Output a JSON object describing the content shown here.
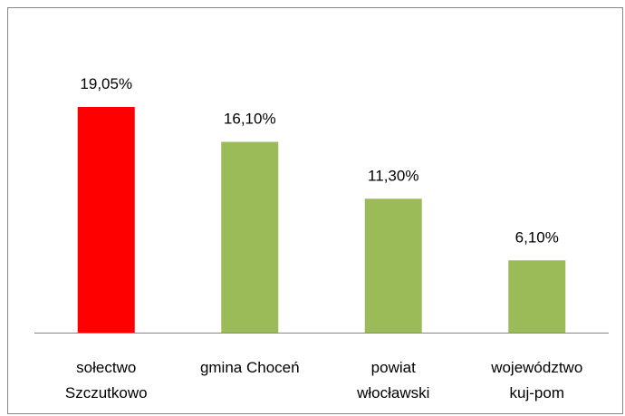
{
  "chart_data": {
    "type": "bar",
    "categories": [
      "sołectwo\nSzczutkowo",
      "gmina Choceń",
      "powiat\nwłocławski",
      "województwo\nkuj-pom"
    ],
    "values": [
      19.05,
      16.1,
      11.3,
      6.1
    ],
    "value_labels": [
      "19,05%",
      "16,10%",
      "11,30%",
      "6,10%"
    ],
    "colors": [
      "#ff0000",
      "#9bbb59",
      "#9bbb59",
      "#9bbb59"
    ]
  }
}
